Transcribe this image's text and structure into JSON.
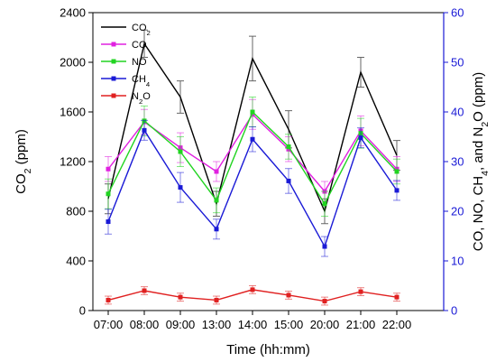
{
  "chart_data": {
    "type": "line",
    "categories": [
      "07:00",
      "08:00",
      "09:00",
      "13:00",
      "14:00",
      "15:00",
      "20:00",
      "21:00",
      "22:00"
    ],
    "xlabel": "Time (hh:mm)",
    "ylabel_left": {
      "base": "CO",
      "sub": "2",
      "tail": " (ppm)"
    },
    "ylabel_right": {
      "parts": [
        {
          "t": "CO, NO, CH"
        },
        {
          "t": "4",
          "sub": true
        },
        {
          "t": ", and N"
        },
        {
          "t": "2",
          "sub": true
        },
        {
          "t": "O (ppm)"
        }
      ]
    },
    "y_left": {
      "min": 0,
      "max": 2400,
      "ticks": [
        0,
        400,
        800,
        1200,
        1600,
        2000,
        2400
      ]
    },
    "y_right": {
      "min": 0,
      "max": 60,
      "ticks": [
        0,
        10,
        20,
        30,
        40,
        50,
        60
      ],
      "color": "#1a1ad6"
    },
    "legend_position": "top-left",
    "series": [
      {
        "id": "co2",
        "name": "CO",
        "name_sub": "2",
        "axis": "left",
        "color": "#000000",
        "marker": false,
        "values": [
          900,
          2150,
          1720,
          860,
          2030,
          1460,
          800,
          1920,
          1250
        ],
        "errors": [
          120,
          110,
          130,
          100,
          180,
          150,
          100,
          120,
          120
        ]
      },
      {
        "id": "co",
        "name": "CO",
        "name_sub": "",
        "axis": "right",
        "color": "#e020e0",
        "marker": true,
        "values": [
          28.5,
          38.0,
          32.8,
          28.0,
          39.5,
          32.5,
          24.0,
          36.2,
          28.5
        ],
        "errors": [
          2.5,
          2.5,
          3.0,
          2.0,
          3.0,
          2.5,
          2.0,
          3.0,
          2.5
        ]
      },
      {
        "id": "no",
        "name": "NO",
        "name_sub": "",
        "axis": "right",
        "color": "#21d421",
        "marker": true,
        "values": [
          23.5,
          38.2,
          32.0,
          22.2,
          40.0,
          33.0,
          21.5,
          35.7,
          28.0
        ],
        "errors": [
          3.0,
          3.0,
          3.0,
          2.5,
          3.0,
          2.5,
          2.5,
          3.0,
          2.5
        ]
      },
      {
        "id": "ch4",
        "name": "CH",
        "name_sub": "4",
        "axis": "right",
        "color": "#1a1ad6",
        "marker": true,
        "values": [
          17.9,
          36.3,
          24.8,
          16.4,
          34.5,
          26.1,
          12.9,
          34.8,
          24.2
        ],
        "errors": [
          2.5,
          2.0,
          3.0,
          2.0,
          2.5,
          2.5,
          2.0,
          2.0,
          2.0
        ]
      },
      {
        "id": "n2o",
        "name": "N",
        "name_sub": "2",
        "name_tail": "O",
        "axis": "right",
        "color": "#e02020",
        "marker": true,
        "values": [
          2.1,
          4.0,
          2.7,
          2.1,
          4.2,
          3.1,
          1.9,
          3.8,
          2.7
        ],
        "errors": [
          0.8,
          0.8,
          0.8,
          0.8,
          0.8,
          0.8,
          0.8,
          0.8,
          0.8
        ]
      }
    ]
  }
}
